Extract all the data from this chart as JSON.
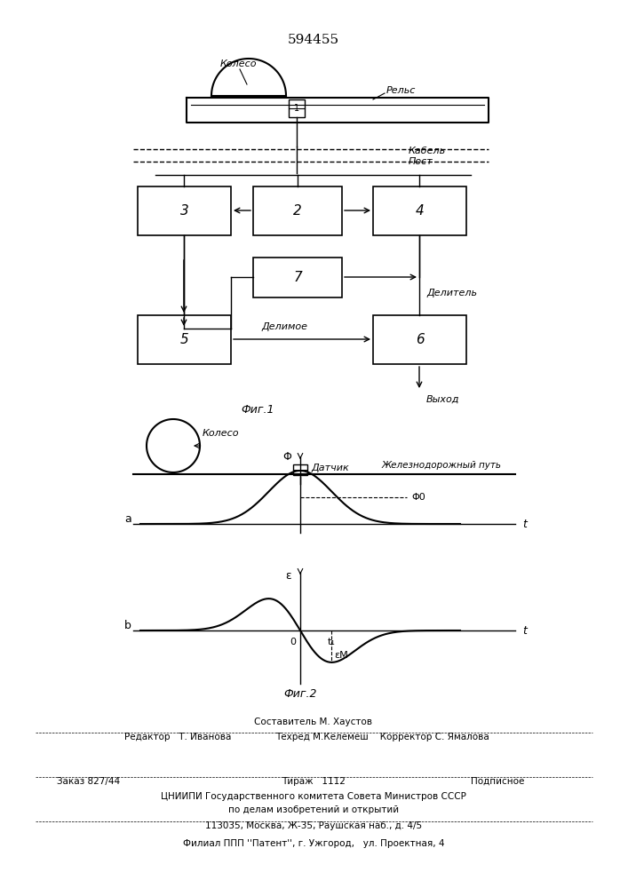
{
  "title_number": "594455",
  "bg_color": "#ffffff",
  "line_color": "#000000",
  "fig1_label": "Фиг.1",
  "fig2_label": "Фиг.2",
  "box_labels": [
    "3",
    "2",
    "4",
    "7",
    "5",
    "6"
  ],
  "annotations": {
    "koleso_top": "Колесо",
    "rels": "Рельс",
    "kabel": "Кабель",
    "post": "Пост",
    "delitel": "Делитель",
    "delimoe": "Делимое",
    "vykhod": "Выход",
    "koleso_fig2": "Колесо",
    "zhd_put": "Железнодорожный путь",
    "datchik": "Датчик",
    "phi": "Φ",
    "phi0": "Φ0",
    "epsilon": "ε",
    "epsilon_m": "εМ",
    "t_label1": "t",
    "t_label2": "t",
    "a_label": "a",
    "b_label": "b",
    "t1_label": "t₁",
    "sensor_num": "1"
  }
}
